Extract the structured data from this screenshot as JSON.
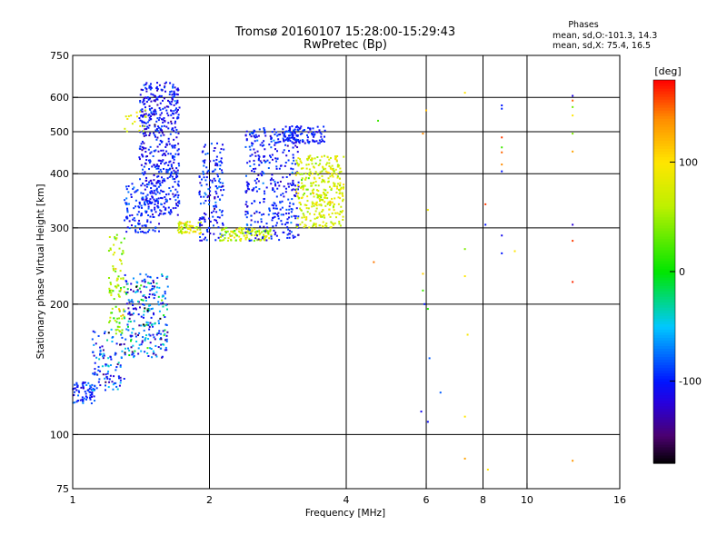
{
  "chart_data": {
    "type": "scatter",
    "title": "Tromsø 20160107 15:28:00-15:29:43",
    "subtitle": "RwPretec (Bp)",
    "notes": {
      "heading": "Phases",
      "line_o": "mean, sd,O:-101.3, 14.3",
      "line_x": "mean, sd,X:  75.4, 16.5"
    },
    "xlabel": "Frequency [MHz]",
    "ylabel": "Stationary phase Virtual Height [km]",
    "x_scale": "log",
    "y_scale": "log",
    "xlim": [
      1,
      16
    ],
    "ylim": [
      75,
      750
    ],
    "xticks": [
      1,
      2,
      4,
      6,
      8,
      10,
      16
    ],
    "yticks": [
      75,
      100,
      200,
      300,
      400,
      500,
      600,
      750
    ],
    "x_gridlines": [
      2,
      4,
      6,
      8,
      10
    ],
    "y_gridlines": [
      100,
      200,
      300,
      400,
      500,
      600
    ],
    "grid": true,
    "colorbar": {
      "label": "[deg]",
      "ticks": [
        -100,
        0,
        100
      ],
      "range": [
        -175,
        175
      ],
      "colormap": "rainbow (black-purple-blue-cyan-green-yellow-orange-red)"
    },
    "clusters": [
      {
        "f_range": [
          1.0,
          1.12
        ],
        "h_range": [
          118,
          132
        ],
        "phase_mean": -95,
        "phase_sd": 15,
        "n": 70
      },
      {
        "f_range": [
          1.1,
          1.3
        ],
        "h_range": [
          125,
          175
        ],
        "phase_mean": -90,
        "phase_sd": 30,
        "n": 110
      },
      {
        "f_range": [
          1.2,
          1.3
        ],
        "h_range": [
          170,
          290
        ],
        "phase_mean": 60,
        "phase_sd": 30,
        "n": 90
      },
      {
        "f_range": [
          1.3,
          1.62
        ],
        "h_range": [
          150,
          235
        ],
        "phase_mean": -80,
        "phase_sd": 45,
        "n": 260
      },
      {
        "f_range": [
          1.4,
          1.72
        ],
        "h_range": [
          320,
          650
        ],
        "phase_mean": -105,
        "phase_sd": 14,
        "n": 520
      },
      {
        "f_range": [
          1.3,
          1.55
        ],
        "h_range": [
          290,
          380
        ],
        "phase_mean": -98,
        "phase_sd": 14,
        "n": 120
      },
      {
        "f_range": [
          1.7,
          1.92
        ],
        "h_range": [
          290,
          310
        ],
        "phase_mean": 80,
        "phase_sd": 20,
        "n": 60
      },
      {
        "f_range": [
          1.9,
          2.15
        ],
        "h_range": [
          280,
          470
        ],
        "phase_mean": -100,
        "phase_sd": 15,
        "n": 160
      },
      {
        "f_range": [
          2.1,
          2.75
        ],
        "h_range": [
          280,
          300
        ],
        "phase_mean": 65,
        "phase_sd": 25,
        "n": 120
      },
      {
        "f_range": [
          2.4,
          3.15
        ],
        "h_range": [
          280,
          510
        ],
        "phase_mean": -102,
        "phase_sd": 14,
        "n": 360
      },
      {
        "f_range": [
          2.9,
          3.6
        ],
        "h_range": [
          470,
          515
        ],
        "phase_mean": -100,
        "phase_sd": 12,
        "n": 110
      },
      {
        "f_range": [
          3.1,
          3.95
        ],
        "h_range": [
          300,
          440
        ],
        "phase_mean": 75,
        "phase_sd": 18,
        "n": 340
      },
      {
        "f_range": [
          1.3,
          1.45
        ],
        "h_range": [
          500,
          560
        ],
        "phase_mean": 80,
        "phase_sd": 15,
        "n": 18
      }
    ],
    "points": [
      {
        "f": 4.7,
        "h": 530,
        "p": 20
      },
      {
        "f": 4.6,
        "h": 250,
        "p": 145
      },
      {
        "f": 5.9,
        "h": 495,
        "p": 140
      },
      {
        "f": 6.0,
        "h": 560,
        "p": 120
      },
      {
        "f": 6.05,
        "h": 330,
        "p": 90
      },
      {
        "f": 5.9,
        "h": 235,
        "p": 110
      },
      {
        "f": 5.9,
        "h": 215,
        "p": 20
      },
      {
        "f": 5.95,
        "h": 200,
        "p": -100
      },
      {
        "f": 6.05,
        "h": 195,
        "p": 10
      },
      {
        "f": 6.1,
        "h": 150,
        "p": -80
      },
      {
        "f": 5.85,
        "h": 113,
        "p": -110
      },
      {
        "f": 6.05,
        "h": 107,
        "p": -105
      },
      {
        "f": 6.45,
        "h": 125,
        "p": -80
      },
      {
        "f": 7.3,
        "h": 615,
        "p": 100
      },
      {
        "f": 7.3,
        "h": 268,
        "p": 40
      },
      {
        "f": 7.3,
        "h": 232,
        "p": 100
      },
      {
        "f": 7.4,
        "h": 170,
        "p": 95
      },
      {
        "f": 7.3,
        "h": 110,
        "p": 100
      },
      {
        "f": 7.3,
        "h": 88,
        "p": 130
      },
      {
        "f": 8.1,
        "h": 340,
        "p": 160
      },
      {
        "f": 8.1,
        "h": 305,
        "p": -100
      },
      {
        "f": 8.2,
        "h": 83,
        "p": 100
      },
      {
        "f": 8.8,
        "h": 575,
        "p": -100
      },
      {
        "f": 8.8,
        "h": 565,
        "p": -95
      },
      {
        "f": 8.8,
        "h": 485,
        "p": 160
      },
      {
        "f": 8.8,
        "h": 460,
        "p": 20
      },
      {
        "f": 8.8,
        "h": 448,
        "p": 150
      },
      {
        "f": 8.8,
        "h": 420,
        "p": 140
      },
      {
        "f": 8.8,
        "h": 405,
        "p": -100
      },
      {
        "f": 8.8,
        "h": 288,
        "p": -110
      },
      {
        "f": 8.8,
        "h": 262,
        "p": -100
      },
      {
        "f": 9.4,
        "h": 265,
        "p": 100
      },
      {
        "f": 12.6,
        "h": 605,
        "p": -115
      },
      {
        "f": 12.6,
        "h": 590,
        "p": 150
      },
      {
        "f": 12.6,
        "h": 570,
        "p": 35
      },
      {
        "f": 12.6,
        "h": 545,
        "p": 100
      },
      {
        "f": 12.6,
        "h": 495,
        "p": 40
      },
      {
        "f": 12.6,
        "h": 450,
        "p": 130
      },
      {
        "f": 12.6,
        "h": 305,
        "p": -120
      },
      {
        "f": 12.6,
        "h": 280,
        "p": 160
      },
      {
        "f": 12.6,
        "h": 225,
        "p": 165
      },
      {
        "f": 12.6,
        "h": 87,
        "p": 135
      }
    ]
  }
}
